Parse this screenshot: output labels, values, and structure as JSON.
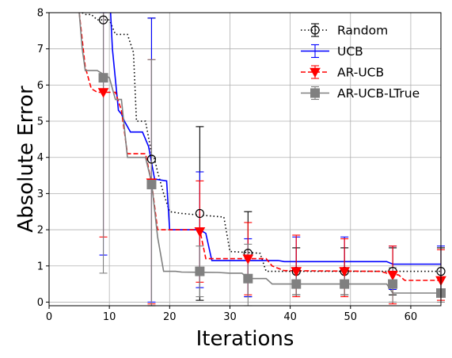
{
  "chart_data": {
    "type": "line",
    "xlabel": "Iterations",
    "ylabel": "Absolute Error",
    "xlim": [
      0,
      65
    ],
    "ylim": [
      -0.1,
      8
    ],
    "xticks": [
      0,
      10,
      20,
      30,
      40,
      50,
      60
    ],
    "yticks": [
      0,
      1,
      2,
      3,
      4,
      5,
      6,
      7,
      8
    ],
    "grid": true,
    "legend_position": "top-right",
    "series": [
      {
        "name": "Random",
        "color": "#000000",
        "line_style": "dotted",
        "marker": "open-circle",
        "line": [
          [
            5.5,
            8
          ],
          [
            6,
            7.95
          ],
          [
            7,
            7.95
          ],
          [
            8,
            7.8
          ],
          [
            10,
            7.8
          ],
          [
            11,
            7.4
          ],
          [
            13,
            7.4
          ],
          [
            14,
            6.9
          ],
          [
            14.5,
            5.0
          ],
          [
            16,
            5.0
          ],
          [
            17,
            4.1
          ],
          [
            17.5,
            3.95
          ],
          [
            18,
            3.6
          ],
          [
            19,
            3.0
          ],
          [
            20,
            2.5
          ],
          [
            22,
            2.45
          ],
          [
            29,
            2.35
          ],
          [
            30,
            1.4
          ],
          [
            35,
            1.35
          ],
          [
            36,
            0.85
          ],
          [
            65,
            0.85
          ]
        ],
        "points": [
          {
            "x": 9,
            "y": 7.8,
            "err_low": null,
            "err_high": null
          },
          {
            "x": 17,
            "y": 3.95,
            "err_low": -0.1,
            "err_high": 7.85
          },
          {
            "x": 25,
            "y": 2.45,
            "err_low": 0.05,
            "err_high": 4.85
          },
          {
            "x": 33,
            "y": 1.35,
            "err_low": 0.15,
            "err_high": 2.5
          },
          {
            "x": 41,
            "y": 0.85,
            "err_low": 0.2,
            "err_high": 1.5
          },
          {
            "x": 49,
            "y": 0.85,
            "err_low": 0.2,
            "err_high": 1.5
          },
          {
            "x": 57,
            "y": 0.85,
            "err_low": 0.2,
            "err_high": 1.5
          },
          {
            "x": 65,
            "y": 0.85,
            "err_low": 0.2,
            "err_high": 1.5
          }
        ]
      },
      {
        "name": "UCB",
        "color": "#0000ff",
        "line_style": "solid",
        "marker": "none",
        "line": [
          [
            10.2,
            8
          ],
          [
            10.5,
            7.0
          ],
          [
            11.5,
            5.3
          ],
          [
            12,
            5.2
          ],
          [
            12.5,
            5.0
          ],
          [
            13.5,
            4.7
          ],
          [
            15.5,
            4.7
          ],
          [
            16.5,
            4.3
          ],
          [
            17.5,
            3.4
          ],
          [
            19.5,
            3.35
          ],
          [
            20,
            2.0
          ],
          [
            25,
            2.0
          ],
          [
            26,
            1.9
          ],
          [
            27,
            1.15
          ],
          [
            38,
            1.15
          ],
          [
            39,
            1.12
          ],
          [
            56,
            1.12
          ],
          [
            57,
            1.05
          ],
          [
            65,
            1.05
          ]
        ],
        "points": [
          {
            "x": 9,
            "y": null,
            "err_low": 1.3,
            "err_high": 8.0
          },
          {
            "x": 17,
            "y": 4.3,
            "err_low": 0.0,
            "err_high": 7.85
          },
          {
            "x": 25,
            "y": 2.0,
            "err_low": 0.4,
            "err_high": 3.6
          },
          {
            "x": 33,
            "y": 1.15,
            "err_low": 0.15,
            "err_high": 1.75
          },
          {
            "x": 41,
            "y": 1.15,
            "err_low": 0.5,
            "err_high": 1.8
          },
          {
            "x": 49,
            "y": 1.12,
            "err_low": 0.45,
            "err_high": 1.8
          },
          {
            "x": 57,
            "y": 1.05,
            "err_low": 0.35,
            "err_high": 1.55
          },
          {
            "x": 65,
            "y": 1.05,
            "err_low": 0.35,
            "err_high": 1.55
          }
        ]
      },
      {
        "name": "AR-UCB",
        "color": "#ff0000",
        "line_style": "dashed",
        "marker": "filled-triangle-down",
        "line": [
          [
            5,
            8
          ],
          [
            6,
            6.5
          ],
          [
            7,
            5.9
          ],
          [
            8,
            5.8
          ],
          [
            11,
            5.8
          ],
          [
            12,
            5.3
          ],
          [
            13,
            4.1
          ],
          [
            16,
            4.1
          ],
          [
            17,
            3.3
          ],
          [
            18,
            2.0
          ],
          [
            25,
            2.0
          ],
          [
            26,
            1.2
          ],
          [
            36,
            1.2
          ],
          [
            37,
            1.0
          ],
          [
            39,
            0.87
          ],
          [
            55,
            0.85
          ],
          [
            56,
            0.8
          ],
          [
            58,
            0.75
          ],
          [
            59,
            0.6
          ],
          [
            65,
            0.6
          ]
        ],
        "points": [
          {
            "x": 9,
            "y": 5.8,
            "err_low": 1.8,
            "err_high": null
          },
          {
            "x": 17,
            "y": 3.3,
            "err_low": -0.05,
            "err_high": 6.7
          },
          {
            "x": 25,
            "y": 1.95,
            "err_low": 0.55,
            "err_high": 3.35
          },
          {
            "x": 33,
            "y": 1.2,
            "err_low": 0.2,
            "err_high": 2.2
          },
          {
            "x": 41,
            "y": 0.85,
            "err_low": 0.15,
            "err_high": 1.85
          },
          {
            "x": 49,
            "y": 0.85,
            "err_low": 0.15,
            "err_high": 1.75
          },
          {
            "x": 57,
            "y": 0.75,
            "err_low": -0.05,
            "err_high": 1.55
          },
          {
            "x": 65,
            "y": 0.6,
            "err_low": 0.05,
            "err_high": 1.45
          }
        ]
      },
      {
        "name": "AR-UCB-LTrue",
        "color": "#808080",
        "line_style": "solid",
        "marker": "filled-square",
        "line": [
          [
            5,
            8
          ],
          [
            5.5,
            7.0
          ],
          [
            6,
            6.4
          ],
          [
            8,
            6.4
          ],
          [
            9,
            6.3
          ],
          [
            10,
            6.2
          ],
          [
            11,
            5.6
          ],
          [
            12,
            5.6
          ],
          [
            13,
            4.0
          ],
          [
            16,
            4.0
          ],
          [
            17,
            3.3
          ],
          [
            18,
            1.8
          ],
          [
            19,
            0.85
          ],
          [
            21,
            0.85
          ],
          [
            22,
            0.83
          ],
          [
            28,
            0.82
          ],
          [
            30,
            0.8
          ],
          [
            32,
            0.8
          ],
          [
            33,
            0.65
          ],
          [
            36,
            0.65
          ],
          [
            37,
            0.5
          ],
          [
            56,
            0.5
          ],
          [
            57,
            0.25
          ],
          [
            65,
            0.25
          ]
        ],
        "points": [
          {
            "x": 9,
            "y": 6.2,
            "err_low": 0.8,
            "err_high": null
          },
          {
            "x": 17,
            "y": 3.25,
            "err_low": -0.1,
            "err_high": 6.7
          },
          {
            "x": 25,
            "y": 0.85,
            "err_low": 0.15,
            "err_high": 1.55
          },
          {
            "x": 33,
            "y": 0.65,
            "err_low": -0.1,
            "err_high": 1.6
          },
          {
            "x": 41,
            "y": 0.5,
            "err_low": 0.2,
            "err_high": 0.85
          },
          {
            "x": 49,
            "y": 0.5,
            "err_low": 0.2,
            "err_high": 0.85
          },
          {
            "x": 57,
            "y": 0.5,
            "err_low": 0.0,
            "err_high": 0.95
          },
          {
            "x": 65,
            "y": 0.25,
            "err_low": 0.0,
            "err_high": 0.7
          }
        ]
      }
    ]
  }
}
